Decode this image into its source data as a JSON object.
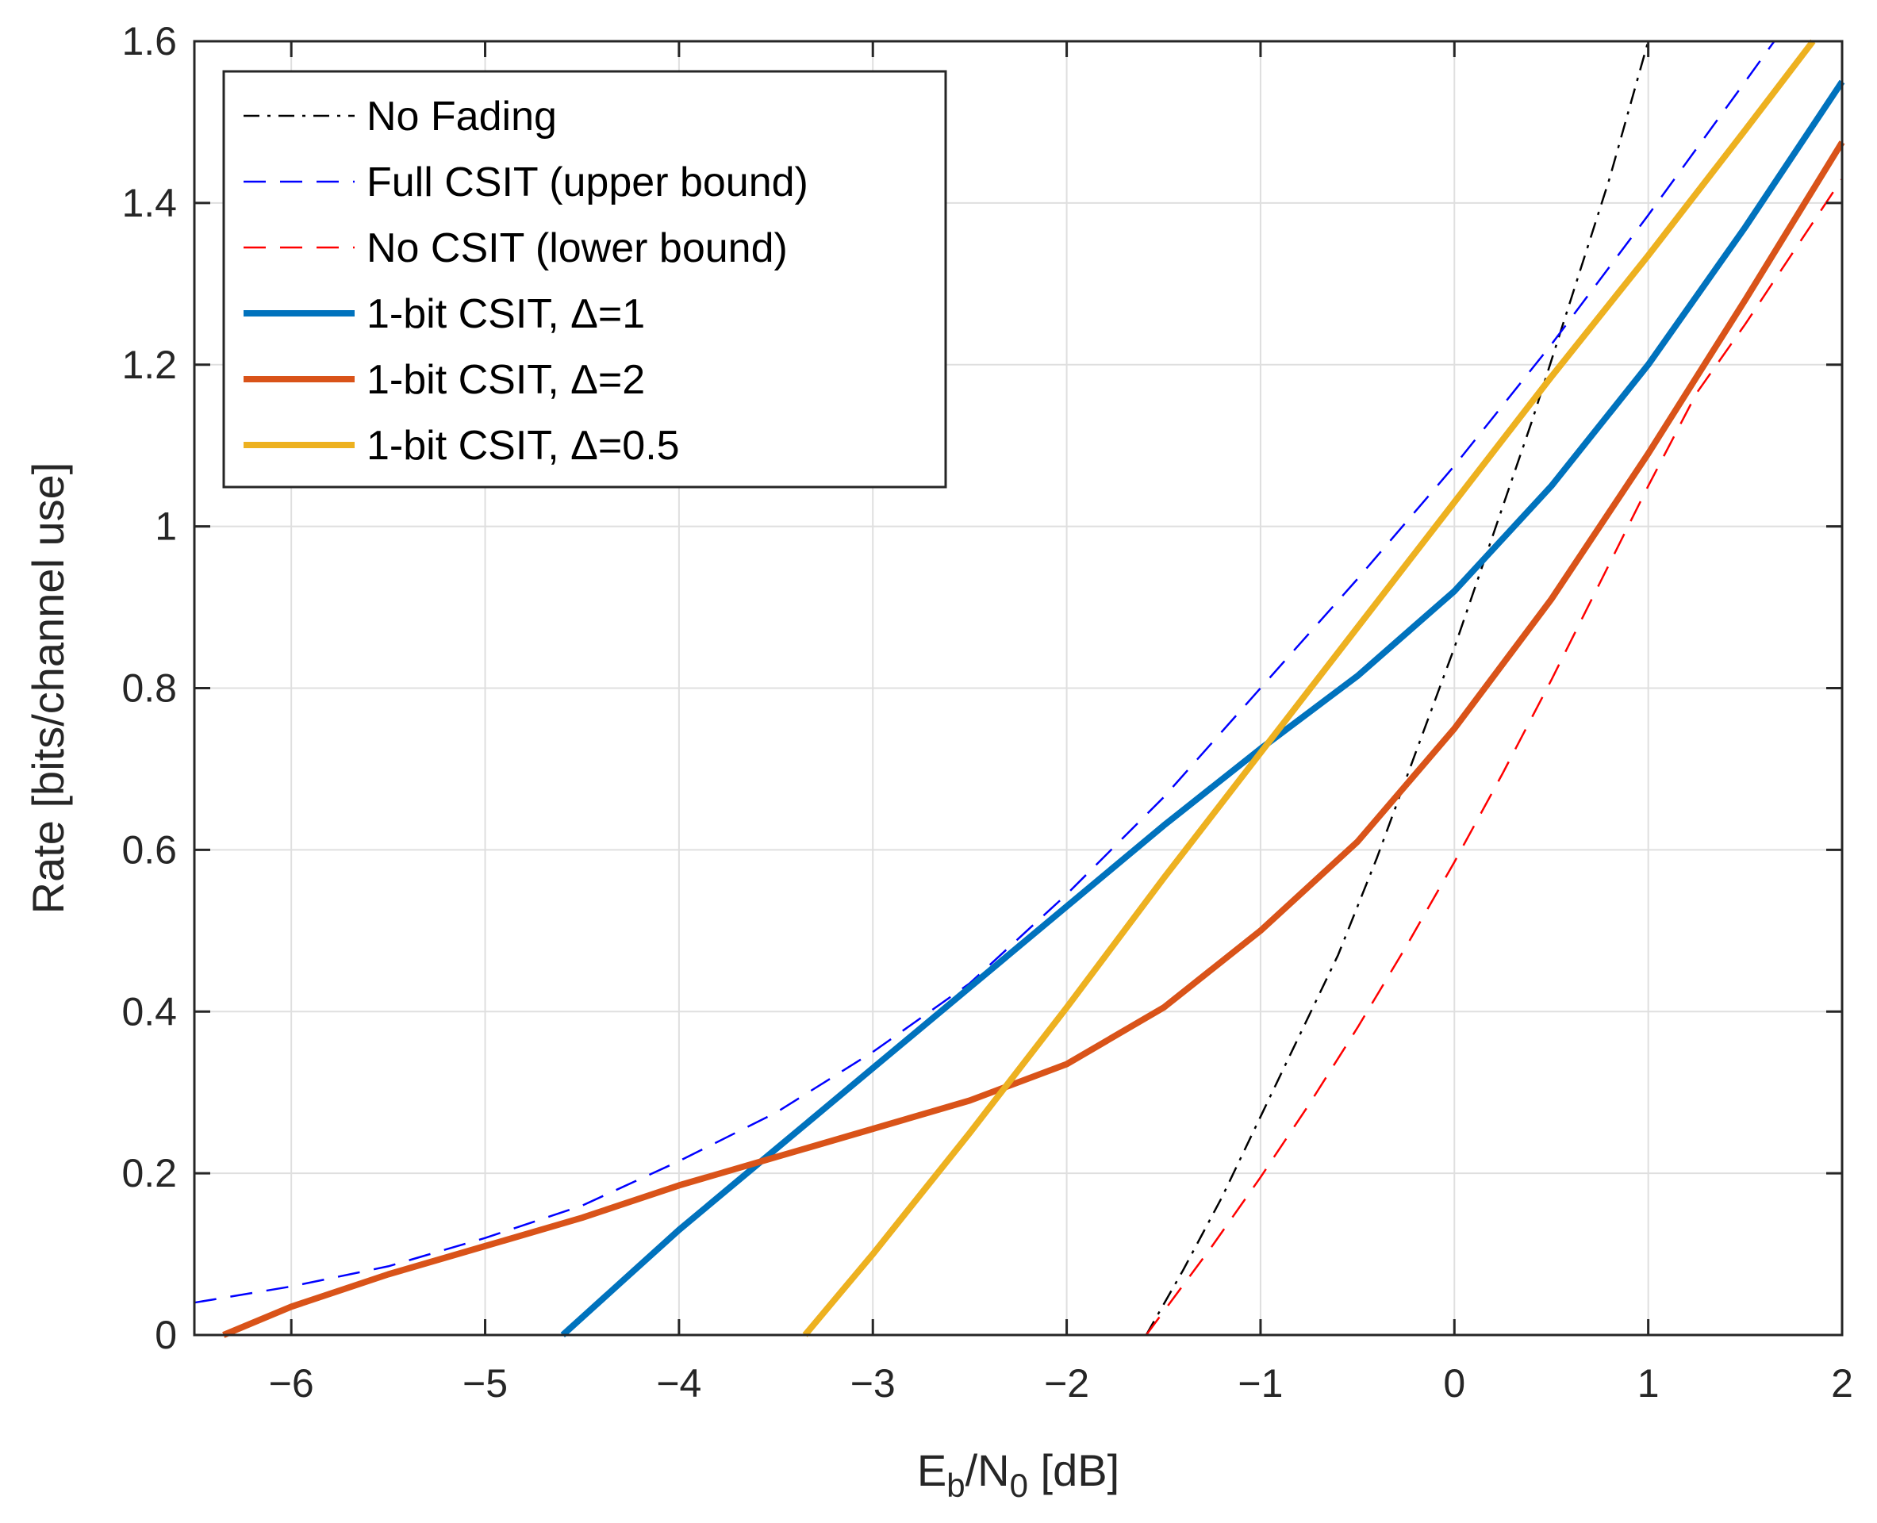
{
  "chart_data": {
    "type": "line",
    "title": "",
    "xlabel_main": "E",
    "xlabel_sub1": "b",
    "xlabel_mid": "/N",
    "xlabel_sub2": "0",
    "xlabel_tail": " [dB]",
    "ylabel": "Rate [bits/channel use]",
    "xlim": [
      -6.5,
      2
    ],
    "ylim": [
      0,
      1.6
    ],
    "xticks": [
      -6,
      -5,
      -4,
      -3,
      -2,
      -1,
      0,
      1,
      2
    ],
    "xtick_labels": [
      "−6",
      "−5",
      "−4",
      "−3",
      "−2",
      "−1",
      "0",
      "1",
      "2"
    ],
    "yticks": [
      0,
      0.2,
      0.4,
      0.6,
      0.8,
      1.0,
      1.2,
      1.4,
      1.6
    ],
    "ytick_labels": [
      "0",
      "0.2",
      "0.4",
      "0.6",
      "0.8",
      "1",
      "1.2",
      "1.4",
      "1.6"
    ],
    "grid": true,
    "legend_position": "top-left",
    "series": [
      {
        "name": "No Fading",
        "color": "#000000",
        "style": "dashdot",
        "width": "thin",
        "x": [
          -1.59,
          -1.4,
          -1.2,
          -1.0,
          -0.8,
          -0.6,
          -0.4,
          -0.2,
          0.0,
          0.2,
          0.4,
          0.6,
          0.8,
          1.0
        ],
        "y": [
          0.0,
          0.08,
          0.17,
          0.27,
          0.37,
          0.47,
          0.59,
          0.72,
          0.85,
          0.99,
          1.13,
          1.28,
          1.43,
          1.6
        ]
      },
      {
        "name": "Full CSIT (upper bound)",
        "color": "#0000ff",
        "style": "dashed",
        "width": "thin",
        "x": [
          -6.5,
          -6.0,
          -5.5,
          -5.0,
          -4.5,
          -4.0,
          -3.5,
          -3.0,
          -2.5,
          -2.0,
          -1.5,
          -1.0,
          -0.5,
          0.0,
          0.5,
          1.0,
          1.5,
          1.65
        ],
        "y": [
          0.04,
          0.06,
          0.085,
          0.12,
          0.16,
          0.215,
          0.275,
          0.35,
          0.435,
          0.545,
          0.665,
          0.8,
          0.935,
          1.075,
          1.225,
          1.385,
          1.55,
          1.6
        ]
      },
      {
        "name": "No CSIT (lower bound)",
        "color": "#ff0000",
        "style": "dashed",
        "width": "thin",
        "x": [
          -1.59,
          -1.25,
          -1.0,
          -0.75,
          -0.5,
          -0.25,
          0.0,
          0.25,
          0.5,
          0.75,
          1.0,
          1.25,
          1.5,
          1.75,
          2.0
        ],
        "y": [
          0.0,
          0.11,
          0.195,
          0.285,
          0.38,
          0.48,
          0.585,
          0.695,
          0.81,
          0.93,
          1.05,
          1.165,
          1.25,
          1.34,
          1.43
        ]
      },
      {
        "name": "1-bit CSIT, Δ=1",
        "color": "#0072bd",
        "style": "solid",
        "width": "thick",
        "x": [
          -4.6,
          -4.3,
          -4.0,
          -3.5,
          -3.0,
          -2.5,
          -2.0,
          -1.5,
          -1.0,
          -0.5,
          0.0,
          0.5,
          1.0,
          1.5,
          2.0
        ],
        "y": [
          0.0,
          0.065,
          0.13,
          0.23,
          0.33,
          0.43,
          0.53,
          0.63,
          0.725,
          0.815,
          0.92,
          1.05,
          1.2,
          1.37,
          1.55
        ]
      },
      {
        "name": "1-bit CSIT, Δ=2",
        "color": "#d95319",
        "style": "solid",
        "width": "thick",
        "x": [
          -6.35,
          -6.0,
          -5.5,
          -5.0,
          -4.5,
          -4.0,
          -3.5,
          -3.0,
          -2.5,
          -2.0,
          -1.5,
          -1.0,
          -0.5,
          0.0,
          0.5,
          1.0,
          1.5,
          2.0
        ],
        "y": [
          0.0,
          0.035,
          0.075,
          0.11,
          0.145,
          0.185,
          0.22,
          0.255,
          0.29,
          0.335,
          0.405,
          0.5,
          0.61,
          0.75,
          0.91,
          1.09,
          1.28,
          1.475
        ]
      },
      {
        "name": "1-bit CSIT, Δ=0.5",
        "color": "#edb120",
        "style": "solid",
        "width": "thick",
        "x": [
          -3.35,
          -3.0,
          -2.5,
          -2.0,
          -1.5,
          -1.0,
          -0.5,
          0.0,
          0.5,
          1.0,
          1.5,
          1.85
        ],
        "y": [
          0.0,
          0.1,
          0.25,
          0.405,
          0.565,
          0.72,
          0.875,
          1.03,
          1.185,
          1.335,
          1.49,
          1.6
        ]
      }
    ]
  }
}
